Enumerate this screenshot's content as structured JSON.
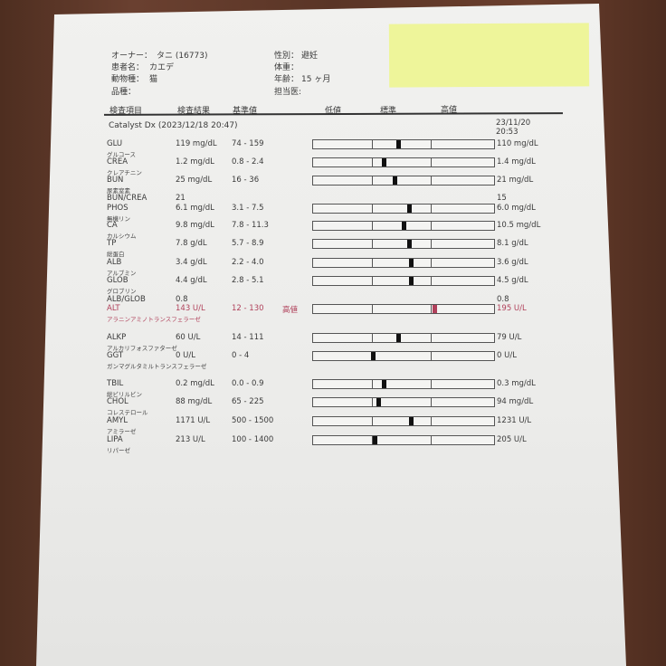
{
  "header": {
    "owner_label": "オーナー：",
    "owner": "タニ (16773)",
    "patient_label": "患者名：",
    "patient": "カエデ",
    "species_label": "動物種：",
    "species": "猫",
    "breed_label": "品種：",
    "breed": "",
    "sex_label": "性別：",
    "sex": "避妊",
    "weight_label": "体重：",
    "weight": "",
    "age_label": "年齢：",
    "age": "15 ヶ月",
    "doctor_label": "担当医:",
    "doctor": ""
  },
  "columns": {
    "item": "検査項目",
    "result": "検査結果",
    "reference": "基準値",
    "low": "低値",
    "normal": "標準",
    "high": "高値"
  },
  "panel": "Catalyst Dx (2023/12/18 20:47)",
  "previous": {
    "date": "23/11/20",
    "time": "20:53"
  },
  "colors": {
    "high_flag": "#b0405a",
    "marker": "#111111",
    "sticky_note": "#eef59a"
  },
  "rows": [
    {
      "code": "GLU",
      "name": "グルコース",
      "result": "119 mg/dL",
      "range": "74 - 159",
      "flag": "",
      "prev": "110 mg/dL",
      "level": 47
    },
    {
      "code": "CREA",
      "name": "クレアチニン",
      "result": "1.2 mg/dL",
      "range": "0.8 - 2.4",
      "flag": "",
      "prev": "1.4 mg/dL",
      "level": 39
    },
    {
      "code": "BUN",
      "name": "尿素窒素",
      "result": "25 mg/dL",
      "range": "16 - 36",
      "flag": "",
      "prev": "21 mg/dL",
      "level": 45
    },
    {
      "code": "BUN/CREA",
      "name": "",
      "result": "21",
      "range": "",
      "flag": "",
      "prev": "15",
      "level": null
    },
    {
      "code": "PHOS",
      "name": "無機リン",
      "result": "6.1 mg/dL",
      "range": "3.1 - 7.5",
      "flag": "",
      "prev": "6.0 mg/dL",
      "level": 53
    },
    {
      "code": "CA",
      "name": "カルシウム",
      "result": "9.8 mg/dL",
      "range": "7.8 - 11.3",
      "flag": "",
      "prev": "10.5 mg/dL",
      "level": 50
    },
    {
      "code": "TP",
      "name": "総蛋白",
      "result": "7.8 g/dL",
      "range": "5.7 - 8.9",
      "flag": "",
      "prev": "8.1 g/dL",
      "level": 53
    },
    {
      "code": "ALB",
      "name": "アルブミン",
      "result": "3.4 g/dL",
      "range": "2.2 - 4.0",
      "flag": "",
      "prev": "3.6 g/dL",
      "level": 54
    },
    {
      "code": "GLOB",
      "name": "グロブリン",
      "result": "4.4 g/dL",
      "range": "2.8 - 5.1",
      "flag": "",
      "prev": "4.5 g/dL",
      "level": 54
    },
    {
      "code": "ALB/GLOB",
      "name": "",
      "result": "0.8",
      "range": "",
      "flag": "",
      "prev": "0.8",
      "level": null
    },
    {
      "code": "ALT",
      "name": "アラニンアミノトランスフェラーゼ",
      "result": "143 U/L",
      "range": "12 - 130",
      "flag": "高値",
      "prev": "195 U/L",
      "level": 67
    },
    {
      "code": "ALKP",
      "name": "アルカリフォスファターゼ",
      "result": "60 U/L",
      "range": "14 - 111",
      "flag": "",
      "prev": "79 U/L",
      "level": 47
    },
    {
      "code": "GGT",
      "name": "ガンマグルタミルトランスフェラーゼ",
      "result": "0 U/L",
      "range": "0 - 4",
      "flag": "",
      "prev": "0 U/L",
      "level": 33
    },
    {
      "code": "TBIL",
      "name": "総ビリルビン",
      "result": "0.2 mg/dL",
      "range": "0.0 - 0.9",
      "flag": "",
      "prev": "0.3 mg/dL",
      "level": 39
    },
    {
      "code": "CHOL",
      "name": "コレステロール",
      "result": "88 mg/dL",
      "range": "65 - 225",
      "flag": "",
      "prev": "94 mg/dL",
      "level": 36
    },
    {
      "code": "AMYL",
      "name": "アミラーゼ",
      "result": "1171 U/L",
      "range": "500 - 1500",
      "flag": "",
      "prev": "1231 U/L",
      "level": 54
    },
    {
      "code": "LIPA",
      "name": "リパーゼ",
      "result": "213 U/L",
      "range": "100 - 1400",
      "flag": "",
      "prev": "205 U/L",
      "level": 34
    }
  ]
}
